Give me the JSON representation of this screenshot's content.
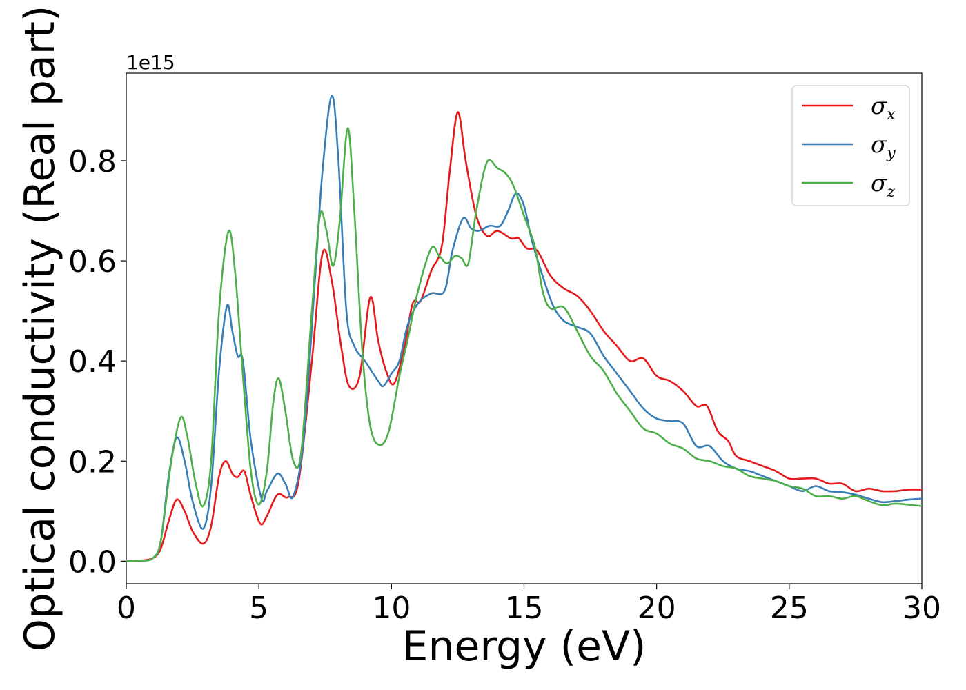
{
  "chart_data": {
    "type": "line",
    "xlabel": "Energy (eV)",
    "ylabel": "Optical conductivity (Real part)",
    "y_offset_label": "1e15",
    "xlim": [
      0,
      30
    ],
    "ylim": [
      -0.045,
      0.975
    ],
    "x_ticks": [
      0,
      5,
      10,
      15,
      20,
      25,
      30
    ],
    "x_tick_labels": [
      "0",
      "5",
      "10",
      "15",
      "20",
      "25",
      "30"
    ],
    "y_ticks": [
      0.0,
      0.2,
      0.4,
      0.6,
      0.8
    ],
    "y_tick_labels": [
      "0.0",
      "0.2",
      "0.4",
      "0.6",
      "0.8"
    ],
    "grid": false,
    "legend_position": "top-right",
    "series": [
      {
        "name": "σx",
        "symbol": "σ",
        "subscript": "x",
        "color": "#e41a1c",
        "points": [
          [
            0,
            0
          ],
          [
            0.5,
            0.001
          ],
          [
            1,
            0.006
          ],
          [
            1.3,
            0.025
          ],
          [
            1.6,
            0.08
          ],
          [
            1.9,
            0.123
          ],
          [
            2.2,
            0.1
          ],
          [
            2.5,
            0.06
          ],
          [
            2.9,
            0.035
          ],
          [
            3.2,
            0.07
          ],
          [
            3.5,
            0.17
          ],
          [
            3.75,
            0.2
          ],
          [
            4.0,
            0.175
          ],
          [
            4.2,
            0.168
          ],
          [
            4.45,
            0.18
          ],
          [
            4.7,
            0.13
          ],
          [
            5.05,
            0.075
          ],
          [
            5.3,
            0.09
          ],
          [
            5.7,
            0.133
          ],
          [
            6.1,
            0.128
          ],
          [
            6.5,
            0.16
          ],
          [
            7.0,
            0.4
          ],
          [
            7.4,
            0.615
          ],
          [
            7.75,
            0.56
          ],
          [
            8.1,
            0.43
          ],
          [
            8.4,
            0.35
          ],
          [
            8.8,
            0.37
          ],
          [
            9.2,
            0.527
          ],
          [
            9.5,
            0.44
          ],
          [
            9.8,
            0.38
          ],
          [
            10.1,
            0.355
          ],
          [
            10.5,
            0.43
          ],
          [
            10.8,
            0.515
          ],
          [
            11.1,
            0.52
          ],
          [
            11.5,
            0.58
          ],
          [
            11.9,
            0.63
          ],
          [
            12.2,
            0.78
          ],
          [
            12.5,
            0.897
          ],
          [
            12.8,
            0.8
          ],
          [
            13.2,
            0.69
          ],
          [
            13.6,
            0.65
          ],
          [
            14.0,
            0.66
          ],
          [
            14.5,
            0.645
          ],
          [
            14.8,
            0.645
          ],
          [
            15.1,
            0.625
          ],
          [
            15.5,
            0.62
          ],
          [
            16.0,
            0.57
          ],
          [
            16.5,
            0.545
          ],
          [
            17.0,
            0.53
          ],
          [
            17.5,
            0.5
          ],
          [
            18.0,
            0.46
          ],
          [
            18.5,
            0.43
          ],
          [
            19.0,
            0.4
          ],
          [
            19.5,
            0.405
          ],
          [
            20.0,
            0.37
          ],
          [
            20.5,
            0.36
          ],
          [
            21.0,
            0.34
          ],
          [
            21.5,
            0.31
          ],
          [
            21.9,
            0.31
          ],
          [
            22.3,
            0.26
          ],
          [
            22.7,
            0.24
          ],
          [
            23.0,
            0.21
          ],
          [
            23.5,
            0.2
          ],
          [
            24.0,
            0.19
          ],
          [
            24.5,
            0.18
          ],
          [
            25.0,
            0.165
          ],
          [
            25.5,
            0.165
          ],
          [
            26.0,
            0.165
          ],
          [
            26.5,
            0.155
          ],
          [
            27.0,
            0.155
          ],
          [
            27.5,
            0.14
          ],
          [
            28.0,
            0.145
          ],
          [
            28.5,
            0.14
          ],
          [
            29.0,
            0.14
          ],
          [
            29.5,
            0.143
          ],
          [
            30.0,
            0.143
          ]
        ]
      },
      {
        "name": "σy",
        "symbol": "σ",
        "subscript": "y",
        "color": "#377eb8",
        "points": [
          [
            0,
            0
          ],
          [
            0.5,
            0.001
          ],
          [
            1,
            0.006
          ],
          [
            1.3,
            0.04
          ],
          [
            1.6,
            0.17
          ],
          [
            1.9,
            0.247
          ],
          [
            2.2,
            0.2
          ],
          [
            2.5,
            0.12
          ],
          [
            2.9,
            0.065
          ],
          [
            3.2,
            0.15
          ],
          [
            3.5,
            0.38
          ],
          [
            3.8,
            0.51
          ],
          [
            4.0,
            0.46
          ],
          [
            4.2,
            0.41
          ],
          [
            4.4,
            0.4
          ],
          [
            4.7,
            0.24
          ],
          [
            5.1,
            0.125
          ],
          [
            5.3,
            0.14
          ],
          [
            5.7,
            0.175
          ],
          [
            6.0,
            0.155
          ],
          [
            6.3,
            0.13
          ],
          [
            6.7,
            0.25
          ],
          [
            7.1,
            0.55
          ],
          [
            7.4,
            0.78
          ],
          [
            7.75,
            0.93
          ],
          [
            8.0,
            0.8
          ],
          [
            8.3,
            0.5
          ],
          [
            8.6,
            0.43
          ],
          [
            9.0,
            0.4
          ],
          [
            9.5,
            0.36
          ],
          [
            9.7,
            0.35
          ],
          [
            10.0,
            0.375
          ],
          [
            10.3,
            0.4
          ],
          [
            10.6,
            0.47
          ],
          [
            11.0,
            0.515
          ],
          [
            11.5,
            0.535
          ],
          [
            12.0,
            0.54
          ],
          [
            12.3,
            0.62
          ],
          [
            12.7,
            0.685
          ],
          [
            13.0,
            0.665
          ],
          [
            13.3,
            0.66
          ],
          [
            13.7,
            0.67
          ],
          [
            14.1,
            0.67
          ],
          [
            14.4,
            0.7
          ],
          [
            14.7,
            0.735
          ],
          [
            15.0,
            0.71
          ],
          [
            15.3,
            0.64
          ],
          [
            15.7,
            0.57
          ],
          [
            16.1,
            0.51
          ],
          [
            16.5,
            0.48
          ],
          [
            17.0,
            0.468
          ],
          [
            17.5,
            0.455
          ],
          [
            18.0,
            0.41
          ],
          [
            18.5,
            0.375
          ],
          [
            19.0,
            0.34
          ],
          [
            19.5,
            0.305
          ],
          [
            20.0,
            0.285
          ],
          [
            20.5,
            0.28
          ],
          [
            21.0,
            0.275
          ],
          [
            21.5,
            0.23
          ],
          [
            22.0,
            0.23
          ],
          [
            22.5,
            0.2
          ],
          [
            23.0,
            0.185
          ],
          [
            23.5,
            0.18
          ],
          [
            24.0,
            0.17
          ],
          [
            24.5,
            0.16
          ],
          [
            25.0,
            0.15
          ],
          [
            25.5,
            0.14
          ],
          [
            26.0,
            0.15
          ],
          [
            26.5,
            0.14
          ],
          [
            27.0,
            0.138
          ],
          [
            27.5,
            0.133
          ],
          [
            28.0,
            0.125
          ],
          [
            28.5,
            0.118
          ],
          [
            29.0,
            0.12
          ],
          [
            29.5,
            0.123
          ],
          [
            30.0,
            0.125
          ]
        ]
      },
      {
        "name": "σz",
        "symbol": "σ",
        "subscript": "z",
        "color": "#4daf4a",
        "points": [
          [
            0,
            0
          ],
          [
            0.5,
            0.001
          ],
          [
            1,
            0.006
          ],
          [
            1.3,
            0.04
          ],
          [
            1.7,
            0.2
          ],
          [
            2.05,
            0.287
          ],
          [
            2.3,
            0.25
          ],
          [
            2.6,
            0.16
          ],
          [
            2.9,
            0.11
          ],
          [
            3.2,
            0.2
          ],
          [
            3.5,
            0.5
          ],
          [
            3.85,
            0.658
          ],
          [
            4.1,
            0.58
          ],
          [
            4.4,
            0.37
          ],
          [
            4.7,
            0.18
          ],
          [
            5.0,
            0.113
          ],
          [
            5.3,
            0.18
          ],
          [
            5.55,
            0.32
          ],
          [
            5.75,
            0.365
          ],
          [
            6.0,
            0.3
          ],
          [
            6.3,
            0.2
          ],
          [
            6.6,
            0.22
          ],
          [
            7.0,
            0.5
          ],
          [
            7.3,
            0.69
          ],
          [
            7.55,
            0.66
          ],
          [
            7.8,
            0.59
          ],
          [
            8.05,
            0.68
          ],
          [
            8.35,
            0.865
          ],
          [
            8.6,
            0.7
          ],
          [
            8.9,
            0.42
          ],
          [
            9.2,
            0.27
          ],
          [
            9.55,
            0.232
          ],
          [
            9.9,
            0.26
          ],
          [
            10.3,
            0.37
          ],
          [
            10.6,
            0.44
          ],
          [
            11.0,
            0.54
          ],
          [
            11.5,
            0.625
          ],
          [
            11.8,
            0.61
          ],
          [
            12.1,
            0.595
          ],
          [
            12.4,
            0.61
          ],
          [
            12.65,
            0.605
          ],
          [
            12.9,
            0.595
          ],
          [
            13.2,
            0.7
          ],
          [
            13.6,
            0.797
          ],
          [
            14.0,
            0.785
          ],
          [
            14.3,
            0.775
          ],
          [
            14.6,
            0.75
          ],
          [
            15.0,
            0.69
          ],
          [
            15.4,
            0.63
          ],
          [
            15.7,
            0.54
          ],
          [
            16.0,
            0.505
          ],
          [
            16.5,
            0.507
          ],
          [
            17.0,
            0.46
          ],
          [
            17.5,
            0.41
          ],
          [
            18.0,
            0.38
          ],
          [
            18.5,
            0.335
          ],
          [
            19.0,
            0.3
          ],
          [
            19.5,
            0.265
          ],
          [
            20.0,
            0.255
          ],
          [
            20.5,
            0.235
          ],
          [
            21.0,
            0.225
          ],
          [
            21.5,
            0.205
          ],
          [
            22.0,
            0.2
          ],
          [
            22.5,
            0.19
          ],
          [
            23.0,
            0.185
          ],
          [
            23.5,
            0.17
          ],
          [
            24.0,
            0.165
          ],
          [
            24.5,
            0.16
          ],
          [
            25.0,
            0.15
          ],
          [
            25.5,
            0.145
          ],
          [
            26.0,
            0.13
          ],
          [
            26.5,
            0.13
          ],
          [
            27.0,
            0.125
          ],
          [
            27.5,
            0.13
          ],
          [
            28.0,
            0.12
          ],
          [
            28.5,
            0.112
          ],
          [
            29.0,
            0.115
          ],
          [
            29.5,
            0.113
          ],
          [
            30.0,
            0.11
          ]
        ]
      }
    ]
  }
}
